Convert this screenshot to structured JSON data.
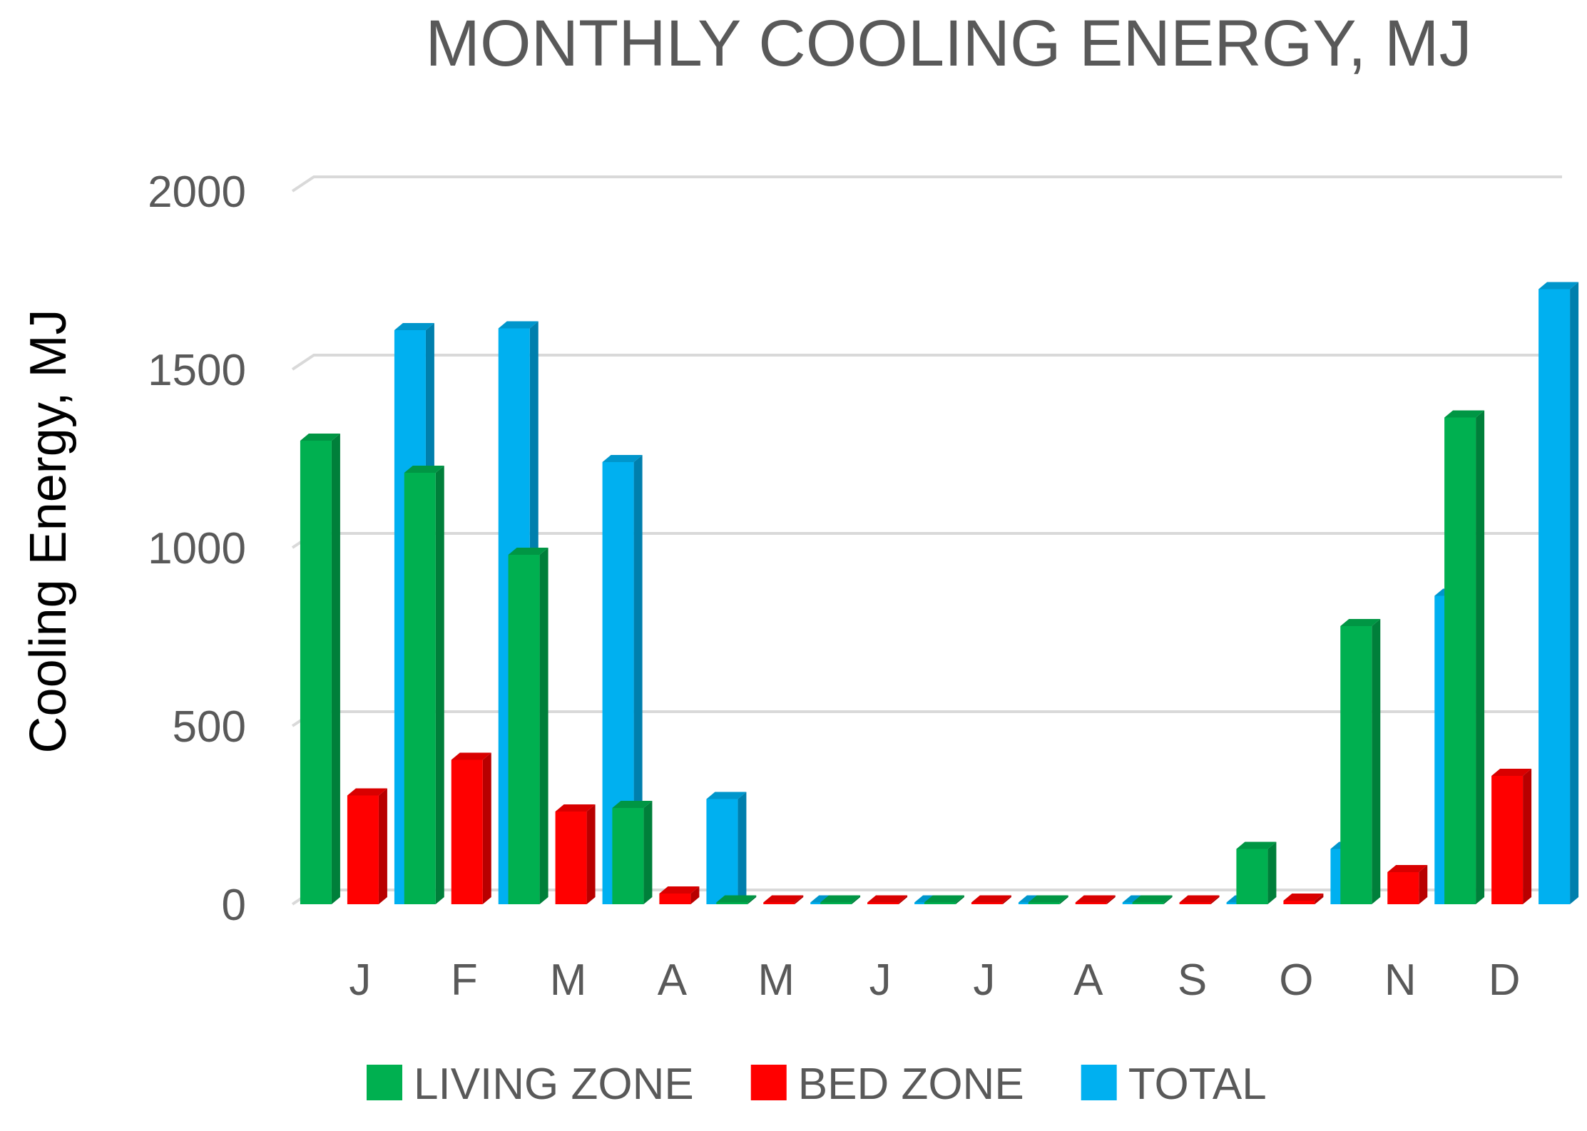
{
  "chart_data": {
    "type": "bar",
    "title": "MONTHLY COOLING ENERGY, MJ",
    "xlabel": "",
    "ylabel": "Cooling Energy, MJ",
    "ylim": [
      0,
      2000
    ],
    "yticks": [
      0,
      500,
      1000,
      1500,
      2000
    ],
    "grid": true,
    "legend_position": "bottom",
    "categories": [
      "J",
      "F",
      "M",
      "A",
      "M",
      "J",
      "J",
      "A",
      "S",
      "O",
      "N",
      "D"
    ],
    "series": [
      {
        "name": "LIVING ZONE",
        "color": "#00b050",
        "values": [
          1300,
          1210,
          980,
          270,
          5,
          5,
          5,
          5,
          5,
          155,
          780,
          1365
        ]
      },
      {
        "name": "BED ZONE",
        "color": "#ff0000",
        "values": [
          305,
          405,
          260,
          30,
          5,
          5,
          5,
          5,
          5,
          10,
          90,
          360
        ]
      },
      {
        "name": "TOTAL",
        "color": "#00b0f0",
        "values": [
          1610,
          1615,
          1240,
          295,
          5,
          5,
          5,
          5,
          5,
          155,
          865,
          1725
        ]
      }
    ]
  }
}
